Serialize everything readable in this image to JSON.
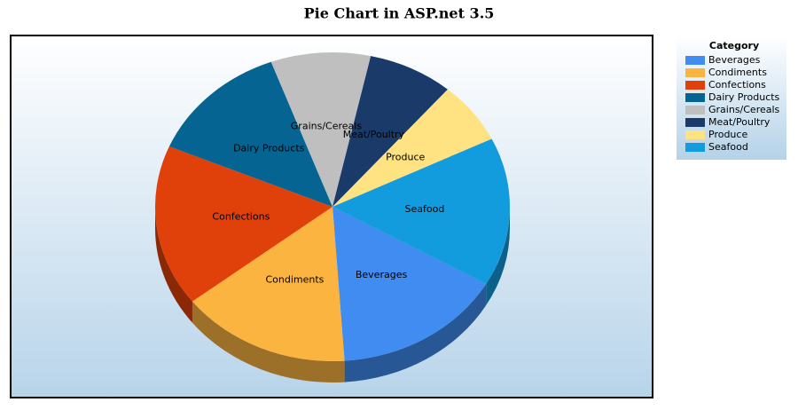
{
  "chart_data": {
    "type": "pie",
    "title": "Pie Chart in ASP.net 3.5",
    "legend_title": "Category",
    "categories": [
      "Beverages",
      "Condiments",
      "Confections",
      "Dairy Products",
      "Grains/Cereals",
      "Meat/Poultry",
      "Produce",
      "Seafood"
    ],
    "values": [
      12,
      12,
      13,
      10,
      7,
      6,
      5,
      12
    ],
    "colors": [
      "#418cf0",
      "#fcb441",
      "#e0400a",
      "#056492",
      "#bfbfbf",
      "#1a3b69",
      "#ffe382",
      "#129cdd"
    ]
  }
}
